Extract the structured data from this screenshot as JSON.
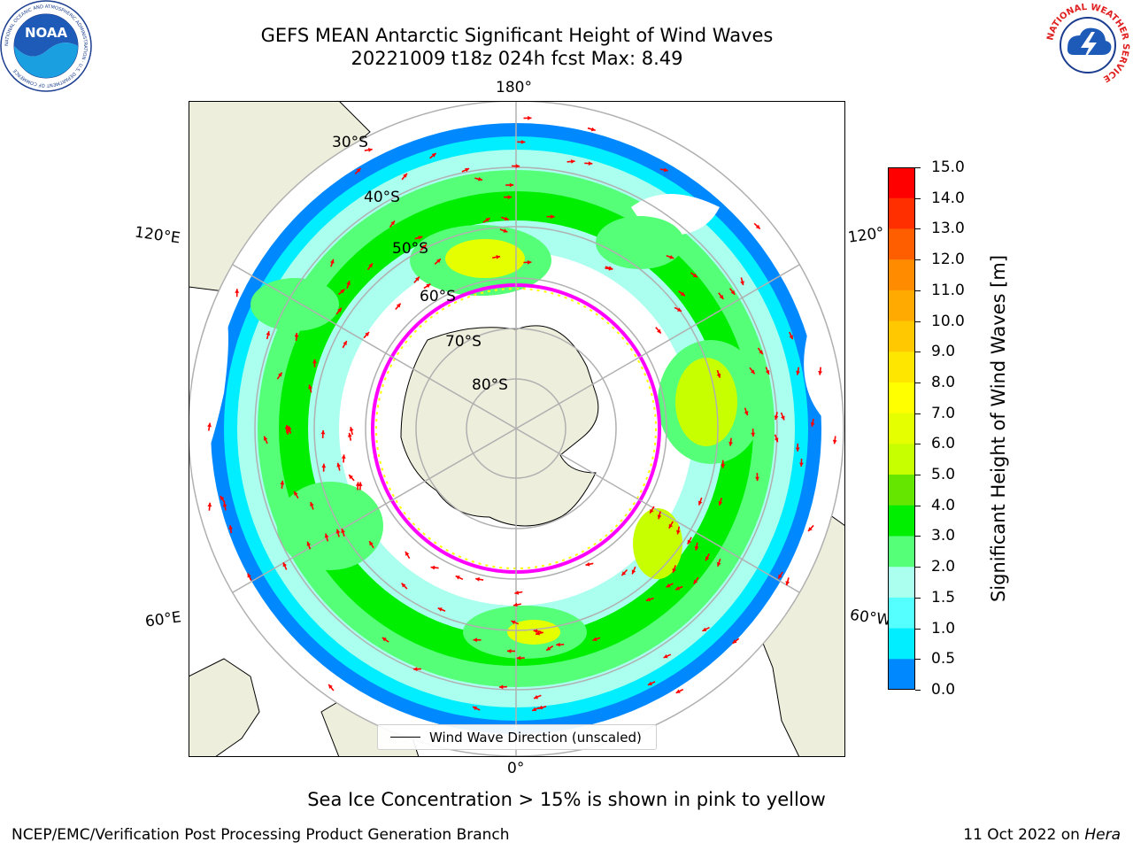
{
  "title_line1": "GEFS MEAN Antarctic Significant Height of Wind Waves",
  "title_line2": "20221009 t18z 024h fcst   Max: 8.49",
  "map": {
    "projection": "south-polar-stereographic",
    "longitude_labels": [
      "180°",
      "120°E",
      "120°",
      "60°E",
      "60°W",
      "0°"
    ],
    "latitude_labels": [
      "30°S",
      "40°S",
      "50°S",
      "60°S",
      "70°S",
      "80°S"
    ],
    "colors": {
      "land": "#eeeedd",
      "coastline": "#000000",
      "grid": "#b0b0b0",
      "arrows": "#ff0000",
      "sea_ice": [
        "#ff00ff",
        "#ffff00"
      ]
    }
  },
  "legend": {
    "label": "Wind Wave Direction (unscaled)"
  },
  "colorbar": {
    "label": "Significant Height of Wind Waves [m]",
    "ticks": [
      "15.0",
      "14.0",
      "13.0",
      "12.0",
      "11.0",
      "10.0",
      "9.0",
      "8.0",
      "7.0",
      "6.0",
      "5.0",
      "4.0",
      "3.0",
      "2.0",
      "1.5",
      "1.0",
      "0.5",
      "0.0"
    ],
    "colors": [
      "#ff0000",
      "#ff2f00",
      "#ff5e00",
      "#ff8c00",
      "#ffaa00",
      "#ffc800",
      "#ffe600",
      "#ffff00",
      "#e6ff00",
      "#c8ff00",
      "#64e600",
      "#00ee00",
      "#55ff77",
      "#aaffee",
      "#55ffff",
      "#00eeff",
      "#0088ff",
      "#0000ff"
    ]
  },
  "chart_data": {
    "type": "heatmap",
    "variable": "Significant Height of Wind Waves",
    "units": "m",
    "max_value": 8.49,
    "color_levels": [
      0.0,
      0.5,
      1.0,
      1.5,
      2.0,
      3.0,
      4.0,
      5.0,
      6.0,
      7.0,
      8.0,
      9.0,
      10.0,
      11.0,
      12.0,
      13.0,
      14.0,
      15.0
    ]
  },
  "ice_note": "Sea Ice Concentration > 15% is shown in pink to yellow",
  "footer": {
    "left": "NCEP/EMC/Verification Post Processing Product Generation Branch",
    "right_date": "11 Oct 2022 on ",
    "right_host": "Hera"
  },
  "logos": {
    "left": "NOAA",
    "left_ring": "NATIONAL OCEANIC AND ATMOSPHERIC ADMINISTRATION · U.S. DEPARTMENT OF COMMERCE",
    "right_ring": "NATIONAL WEATHER SERVICE"
  }
}
